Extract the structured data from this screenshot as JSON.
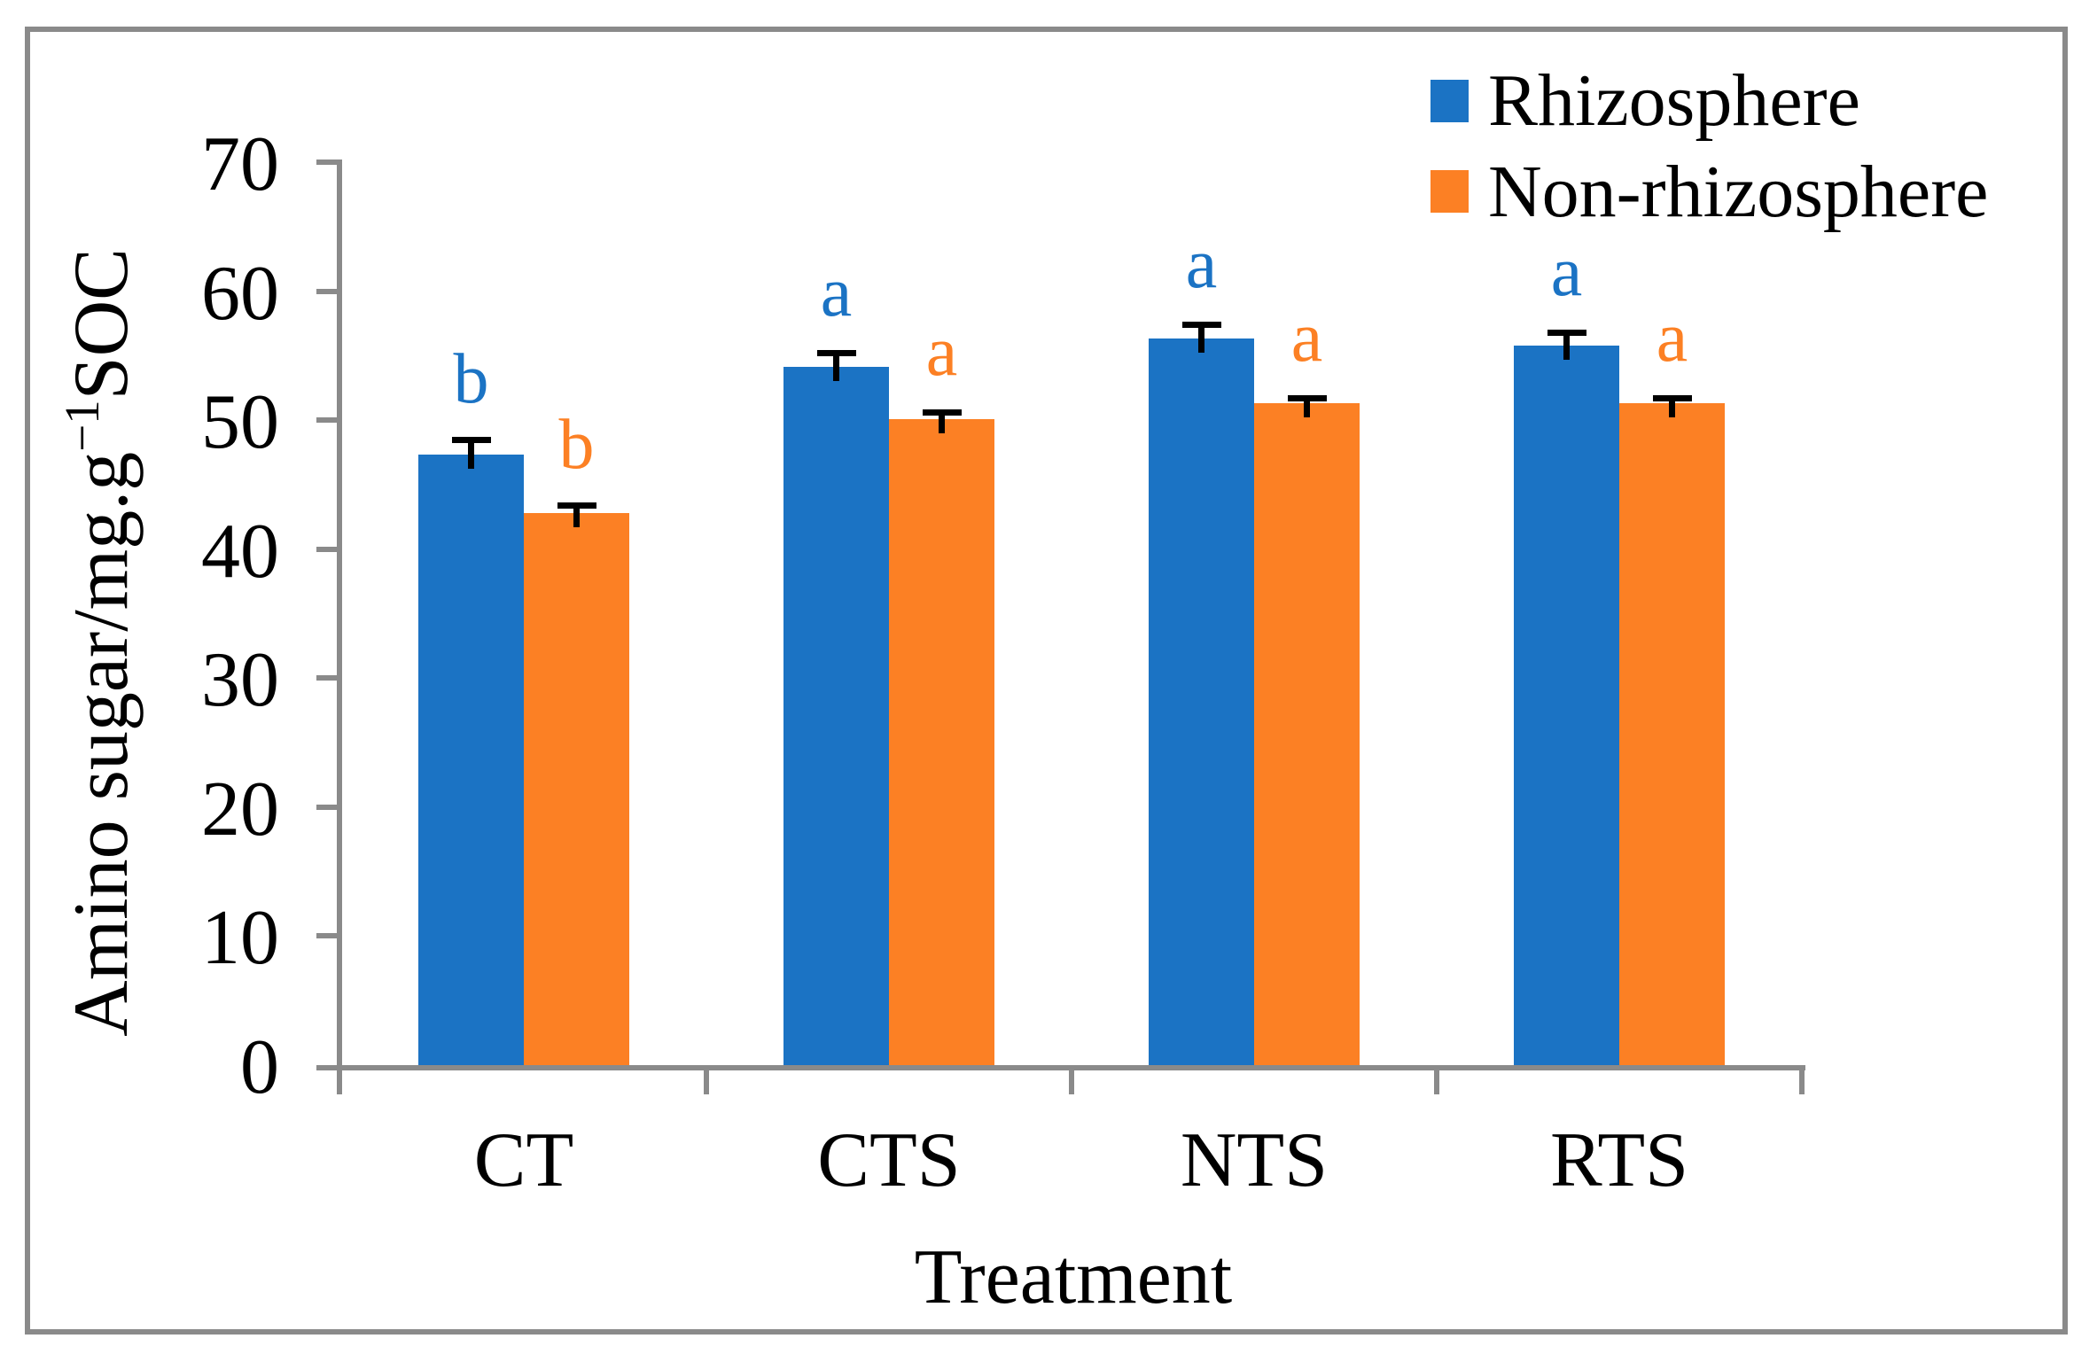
{
  "figure": {
    "background": "#FFFFFF",
    "border_color": "#8A8A8A"
  },
  "chart_data": {
    "type": "bar",
    "title": "",
    "categories": [
      "CT",
      "CTS",
      "NTS",
      "RTS"
    ],
    "series": [
      {
        "name": "Rhizosphere",
        "color": "#1B73C4",
        "values": [
          47.3,
          54.1,
          56.3,
          55.8
        ],
        "errors_plus": [
          1.2,
          1.1,
          1.1,
          1.0
        ],
        "letters": [
          "b",
          "a",
          "a",
          "a"
        ]
      },
      {
        "name": "Non-rhizosphere",
        "color": "#FC8024",
        "values": [
          42.8,
          50.1,
          51.3,
          51.3
        ],
        "errors_plus": [
          0.6,
          0.5,
          0.4,
          0.4
        ],
        "letters": [
          "b",
          "a",
          "a",
          "a"
        ]
      }
    ],
    "xlabel": "Treatment",
    "ylabel_main": "Amino sugar/mg.g",
    "ylabel_sup": "−1",
    "ylabel_end": "SOC",
    "ylim": [
      0,
      70
    ],
    "yticks": [
      0,
      10,
      20,
      30,
      40,
      50,
      60,
      70
    ],
    "grid": false,
    "legend_position": "top-right",
    "axis_color": "#8A8A8A",
    "error_bar_color": "#000000"
  }
}
